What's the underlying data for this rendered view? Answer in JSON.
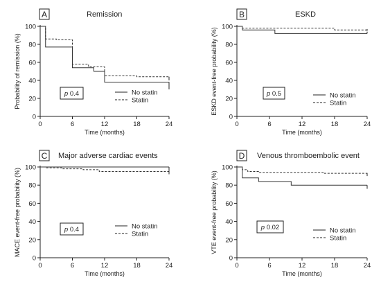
{
  "colors": {
    "axis": "#222222",
    "no_statin": "#333333",
    "statin": "#333333",
    "background": "#ffffff"
  },
  "chart_data": [
    {
      "type": "line",
      "panel": "A",
      "title": "Remission",
      "xlabel": "Time (months)",
      "ylabel": "Probability of remission (%)",
      "xlim": [
        0,
        24
      ],
      "ylim": [
        0,
        100
      ],
      "xticks": [
        0,
        6,
        12,
        18,
        24
      ],
      "yticks": [
        0,
        20,
        40,
        60,
        80,
        100
      ],
      "xtick_labels": [
        "0",
        "6",
        "12",
        "18",
        "24"
      ],
      "ytick_labels": [
        "0",
        "20",
        "40",
        "60",
        "80",
        "100"
      ],
      "annotation": {
        "italic": "p",
        "value": "0.4"
      },
      "legend_position": "bottom-right",
      "series": [
        {
          "name": "No statin",
          "style": "solid",
          "x": [
            0,
            1,
            6,
            10,
            12,
            24
          ],
          "y": [
            100,
            77,
            54,
            50,
            38,
            30
          ],
          "end_tick": [
            38,
            30
          ]
        },
        {
          "name": "Statin",
          "style": "dashed",
          "x": [
            0,
            1,
            3,
            6,
            9,
            12,
            18,
            24
          ],
          "y": [
            100,
            86,
            85,
            58,
            55,
            45,
            44,
            40
          ],
          "end_tick": [
            44,
            40
          ]
        }
      ]
    },
    {
      "type": "line",
      "panel": "B",
      "title": "ESKD",
      "xlabel": "Time (months)",
      "ylabel": "ESKD event-free probability (%)",
      "xlim": [
        0,
        24
      ],
      "ylim": [
        0,
        100
      ],
      "xticks": [
        0,
        6,
        12,
        18,
        24
      ],
      "yticks": [
        0,
        20,
        40,
        60,
        80,
        100
      ],
      "xtick_labels": [
        "0",
        "6",
        "12",
        "18",
        "24"
      ],
      "ytick_labels": [
        "0",
        "20",
        "40",
        "60",
        "80",
        "100"
      ],
      "annotation": {
        "italic": "p",
        "value": "0.5"
      },
      "legend_position": "bottom-right",
      "series": [
        {
          "name": "No statin",
          "style": "solid",
          "x": [
            0,
            1,
            7,
            24
          ],
          "y": [
            100,
            96,
            92,
            92
          ],
          "end_tick": [
            94,
            92
          ]
        },
        {
          "name": "Statin",
          "style": "dashed",
          "x": [
            0,
            1,
            18,
            24
          ],
          "y": [
            100,
            98,
            96,
            95
          ],
          "end_tick": [
            97,
            95
          ]
        }
      ]
    },
    {
      "type": "line",
      "panel": "C",
      "title": "Major adverse cardiac events",
      "xlabel": "Time (months)",
      "ylabel": "MACE event-free probability (%)",
      "xlim": [
        0,
        24
      ],
      "ylim": [
        0,
        100
      ],
      "xticks": [
        0,
        6,
        12,
        18,
        24
      ],
      "yticks": [
        0,
        20,
        40,
        60,
        80,
        100
      ],
      "xtick_labels": [
        "0",
        "6",
        "12",
        "18",
        "24"
      ],
      "ytick_labels": [
        "0",
        "20",
        "40",
        "60",
        "80",
        "100"
      ],
      "annotation": {
        "italic": "p",
        "value": "0.4"
      },
      "legend_position": "bottom-right",
      "series": [
        {
          "name": "No statin",
          "style": "solid",
          "x": [
            0,
            24
          ],
          "y": [
            100,
            100
          ],
          "end_tick": [
            100,
            96
          ]
        },
        {
          "name": "Statin",
          "style": "dashed",
          "x": [
            0,
            1,
            4,
            8,
            11,
            24
          ],
          "y": [
            100,
            99,
            98,
            97,
            95,
            94
          ],
          "end_tick": [
            96,
            92
          ]
        }
      ]
    },
    {
      "type": "line",
      "panel": "D",
      "title": "Venous thromboembolic event",
      "xlabel": "Time (months)",
      "ylabel": "VTE event-free probability (%)",
      "xlim": [
        0,
        24
      ],
      "ylim": [
        0,
        100
      ],
      "xticks": [
        0,
        6,
        12,
        18,
        24
      ],
      "yticks": [
        0,
        20,
        40,
        60,
        80,
        100
      ],
      "xtick_labels": [
        "0",
        "6",
        "12",
        "18",
        "24"
      ],
      "ytick_labels": [
        "0",
        "20",
        "40",
        "60",
        "80",
        "100"
      ],
      "annotation": {
        "italic": "p",
        "value": "0.02"
      },
      "legend_position": "bottom-right",
      "series": [
        {
          "name": "No statin",
          "style": "solid",
          "x": [
            0,
            1,
            4,
            10,
            24
          ],
          "y": [
            100,
            88,
            84,
            80,
            80
          ],
          "end_tick": [
            80,
            76
          ]
        },
        {
          "name": "Statin",
          "style": "dashed",
          "x": [
            0,
            1,
            2,
            4,
            16,
            24
          ],
          "y": [
            100,
            97,
            95,
            94,
            93,
            92
          ],
          "end_tick": [
            93,
            90
          ]
        }
      ]
    }
  ]
}
